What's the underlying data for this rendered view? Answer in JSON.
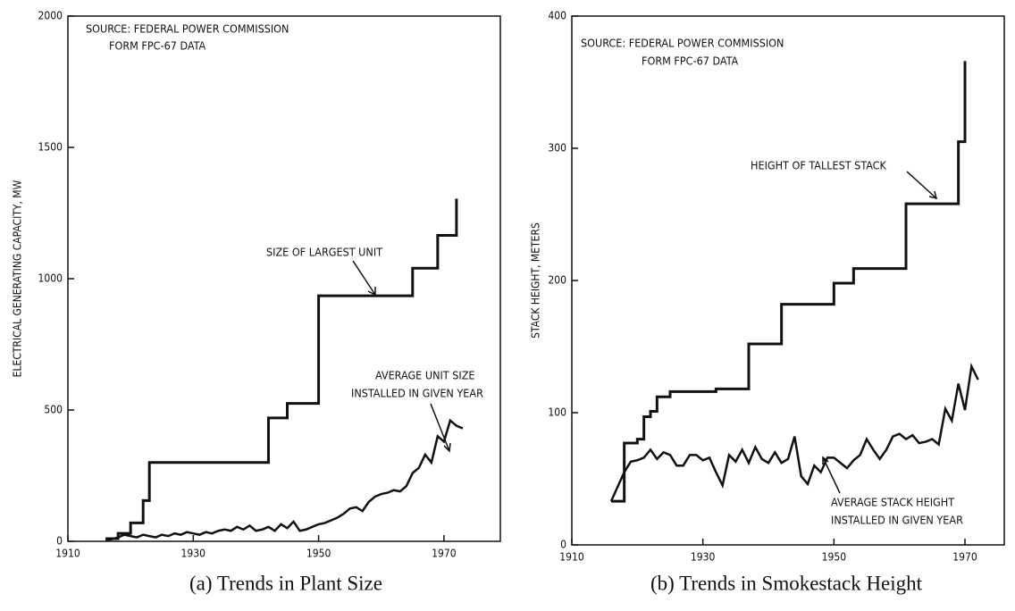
{
  "chart_data": [
    {
      "type": "line",
      "caption": "(a) Trends in Plant Size",
      "y_label": "ELECTRICAL GENERATING CAPACITY, MW",
      "annotations": [
        "SOURCE: FEDERAL POWER COMMISSION",
        "FORM FPC-67 DATA",
        "SIZE OF LARGEST UNIT",
        "AVERAGE UNIT SIZE",
        "INSTALLED IN GIVEN YEAR"
      ],
      "xlim": [
        1910,
        1979
      ],
      "xticks": [
        1910,
        1930,
        1950,
        1970
      ],
      "ylim": [
        0,
        2000
      ],
      "yticks": [
        0,
        500,
        1000,
        1500,
        2000
      ],
      "series": [
        {
          "color": "#111111",
          "step": true,
          "x": [
            1916,
            1918,
            1920,
            1922,
            1923,
            1942,
            1945,
            1950,
            1965,
            1969,
            1972
          ],
          "values": [
            10,
            30,
            70,
            155,
            300,
            470,
            525,
            935,
            1040,
            1165,
            1305
          ]
        },
        {
          "color": "#111111",
          "step": false,
          "x": [
            1916,
            1917,
            1918,
            1919,
            1920,
            1921,
            1922,
            1923,
            1924,
            1925,
            1926,
            1927,
            1928,
            1929,
            1930,
            1931,
            1932,
            1933,
            1934,
            1935,
            1936,
            1937,
            1938,
            1939,
            1940,
            1941,
            1942,
            1943,
            1944,
            1945,
            1946,
            1947,
            1948,
            1949,
            1950,
            1951,
            1952,
            1953,
            1954,
            1955,
            1956,
            1957,
            1958,
            1959,
            1960,
            1961,
            1962,
            1963,
            1964,
            1965,
            1966,
            1967,
            1968,
            1969,
            1970,
            1971,
            1972,
            1973
          ],
          "values": [
            5,
            8,
            15,
            25,
            20,
            15,
            25,
            20,
            15,
            25,
            20,
            30,
            25,
            35,
            30,
            25,
            35,
            30,
            40,
            45,
            40,
            55,
            45,
            60,
            40,
            45,
            55,
            40,
            65,
            50,
            75,
            40,
            45,
            55,
            65,
            70,
            80,
            90,
            105,
            125,
            130,
            115,
            150,
            170,
            180,
            185,
            195,
            190,
            210,
            260,
            280,
            330,
            300,
            400,
            380,
            460,
            440,
            430
          ]
        }
      ]
    },
    {
      "type": "line",
      "caption": "(b) Trends in Smokestack Height",
      "y_label": "STACK HEIGHT, METERS",
      "annotations": [
        "SOURCE:  FEDERAL POWER COMMISSION",
        "FORM FPC-67 DATA",
        "HEIGHT OF TALLEST STACK",
        "AVERAGE STACK HEIGHT",
        "INSTALLED IN GIVEN YEAR"
      ],
      "xlim": [
        1910,
        1976
      ],
      "xticks": [
        1910,
        1930,
        1950,
        1970
      ],
      "ylim": [
        0,
        400
      ],
      "yticks": [
        0,
        100,
        200,
        300,
        400
      ],
      "series": [
        {
          "color": "#111111",
          "step": true,
          "x": [
            1916,
            1918,
            1920,
            1921,
            1922,
            1923,
            1925,
            1932,
            1937,
            1942,
            1950,
            1953,
            1961,
            1969,
            1970
          ],
          "values": [
            33,
            77,
            80,
            97,
            101,
            112,
            116,
            118,
            152,
            182,
            198,
            209,
            258,
            305,
            366
          ]
        },
        {
          "color": "#111111",
          "step": false,
          "x": [
            1916,
            1918,
            1919,
            1920,
            1921,
            1922,
            1923,
            1924,
            1925,
            1926,
            1927,
            1928,
            1929,
            1930,
            1931,
            1932,
            1933,
            1934,
            1935,
            1936,
            1937,
            1938,
            1939,
            1940,
            1941,
            1942,
            1943,
            1944,
            1945,
            1946,
            1947,
            1948,
            1949,
            1950,
            1951,
            1952,
            1953,
            1954,
            1955,
            1956,
            1957,
            1958,
            1959,
            1960,
            1961,
            1962,
            1963,
            1964,
            1965,
            1966,
            1967,
            1968,
            1969,
            1970,
            1971,
            1972
          ],
          "values": [
            33,
            55,
            63,
            64,
            66,
            72,
            65,
            70,
            68,
            60,
            60,
            68,
            68,
            64,
            66,
            55,
            45,
            68,
            63,
            72,
            62,
            74,
            65,
            62,
            70,
            62,
            65,
            82,
            52,
            46,
            60,
            55,
            66,
            66,
            62,
            58,
            64,
            68,
            80,
            72,
            65,
            72,
            82,
            84,
            80,
            83,
            77,
            78,
            80,
            76,
            103,
            94,
            122,
            102,
            135,
            125
          ]
        }
      ]
    }
  ]
}
